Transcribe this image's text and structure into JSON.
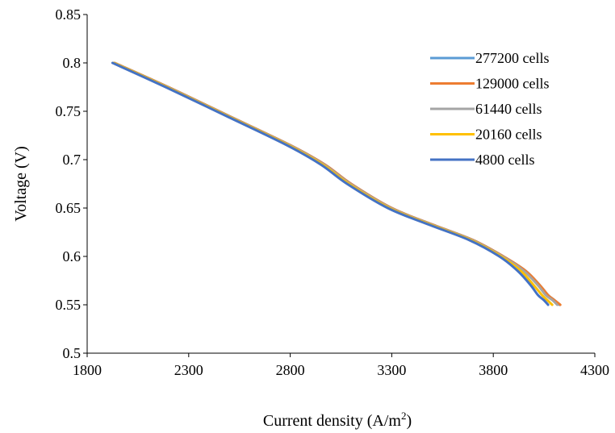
{
  "chart_data": {
    "type": "line",
    "xlabel": "Current density (A/m",
    "xlabel_sup": "2",
    "xlabel_end": ")",
    "ylabel": "Voltage (V)",
    "xlim": [
      1800,
      4300
    ],
    "ylim": [
      0.5,
      0.85
    ],
    "x_ticks": [
      "1800",
      "2300",
      "2800",
      "3300",
      "3800",
      "4300"
    ],
    "y_ticks": [
      "0.5",
      "0.55",
      "0.6",
      "0.65",
      "0.7",
      "0.75",
      "0.8",
      "0.85"
    ],
    "grid": false,
    "legend_position": "right",
    "series": [
      {
        "name": "277200 cells",
        "color": "#5B9BD5",
        "x": [
          1935,
          2200,
          2500,
          2800,
          2970,
          3100,
          3300,
          3500,
          3700,
          3850,
          3960,
          4030,
          4070,
          4100,
          4125
        ],
        "y": [
          0.8,
          0.775,
          0.745,
          0.715,
          0.695,
          0.675,
          0.65,
          0.633,
          0.617,
          0.6,
          0.585,
          0.57,
          0.56,
          0.555,
          0.55
        ]
      },
      {
        "name": "129000 cells",
        "color": "#ED7D31",
        "x": [
          1935,
          2200,
          2500,
          2800,
          2970,
          3100,
          3300,
          3500,
          3700,
          3850,
          3960,
          4030,
          4070,
          4100,
          4130
        ],
        "y": [
          0.8,
          0.775,
          0.745,
          0.715,
          0.695,
          0.675,
          0.65,
          0.633,
          0.617,
          0.6,
          0.585,
          0.57,
          0.56,
          0.555,
          0.55
        ]
      },
      {
        "name": "61440 cells",
        "color": "#A5A5A5",
        "x": [
          1932,
          2196,
          2496,
          2796,
          2965,
          3095,
          3295,
          3495,
          3695,
          3845,
          3950,
          4020,
          4058,
          4090,
          4115
        ],
        "y": [
          0.8,
          0.775,
          0.745,
          0.715,
          0.695,
          0.675,
          0.65,
          0.633,
          0.617,
          0.6,
          0.585,
          0.57,
          0.56,
          0.555,
          0.55
        ]
      },
      {
        "name": "20160 cells",
        "color": "#FFC000",
        "x": [
          1930,
          2192,
          2492,
          2790,
          2958,
          3088,
          3288,
          3488,
          3688,
          3838,
          3935,
          4000,
          4040,
          4065,
          4090
        ],
        "y": [
          0.8,
          0.775,
          0.745,
          0.715,
          0.695,
          0.675,
          0.65,
          0.633,
          0.617,
          0.6,
          0.585,
          0.57,
          0.56,
          0.555,
          0.55
        ]
      },
      {
        "name": "4800 cells",
        "color": "#4472C4",
        "x": [
          1925,
          2186,
          2486,
          2783,
          2950,
          3080,
          3280,
          3480,
          3680,
          3830,
          3920,
          3985,
          4020,
          4048,
          4070
        ],
        "y": [
          0.8,
          0.775,
          0.745,
          0.715,
          0.695,
          0.675,
          0.65,
          0.633,
          0.617,
          0.6,
          0.585,
          0.57,
          0.56,
          0.555,
          0.55
        ]
      }
    ]
  }
}
